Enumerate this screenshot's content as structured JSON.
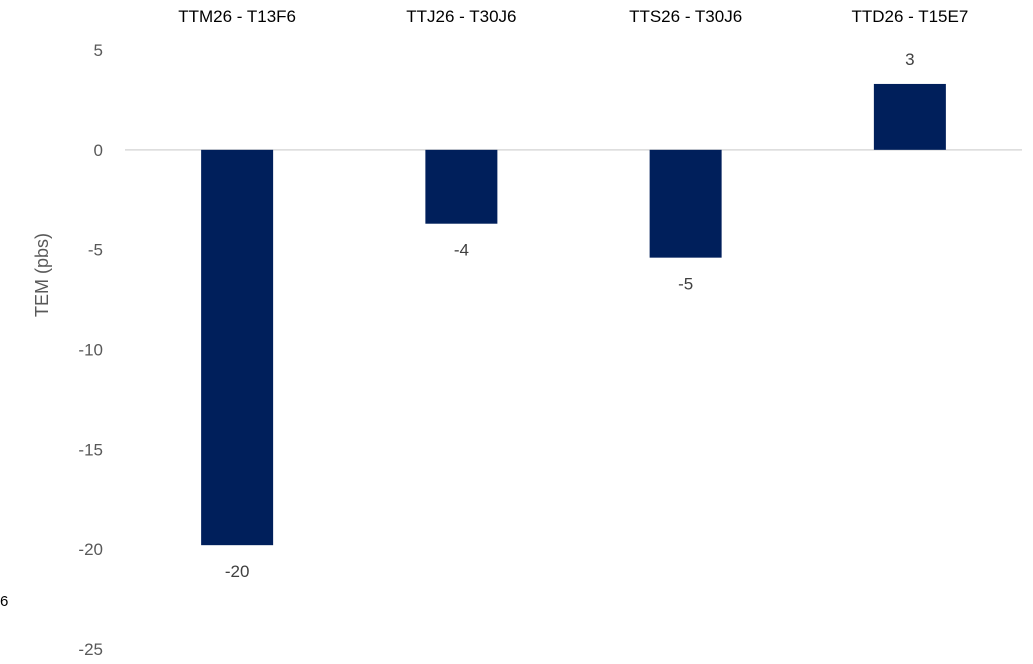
{
  "chart_data": {
    "type": "bar",
    "categories": [
      "TTM26 - T13F6",
      "TTJ26 - T30J6",
      "TTS26 - T30J6",
      "TTD26 - T15E7"
    ],
    "values": [
      -19.8,
      -3.7,
      -5.4,
      3.3
    ],
    "data_labels": [
      "-20",
      "-4",
      "-5",
      "3"
    ],
    "title": "",
    "xlabel": "",
    "ylabel": "TEM (pbs)",
    "ylim": [
      -25,
      5
    ],
    "yticks": [
      5,
      0,
      -5,
      -10,
      -15,
      -20,
      -25
    ],
    "ytick_labels": [
      "5",
      "0",
      "-5",
      "-10",
      "-15",
      "-20",
      "-25"
    ],
    "category_labels_position": "top",
    "grid": false,
    "legend": "none",
    "bar_color": "#001F5B",
    "zero_line_color": "#D9D9D9"
  },
  "stray_text": "6"
}
